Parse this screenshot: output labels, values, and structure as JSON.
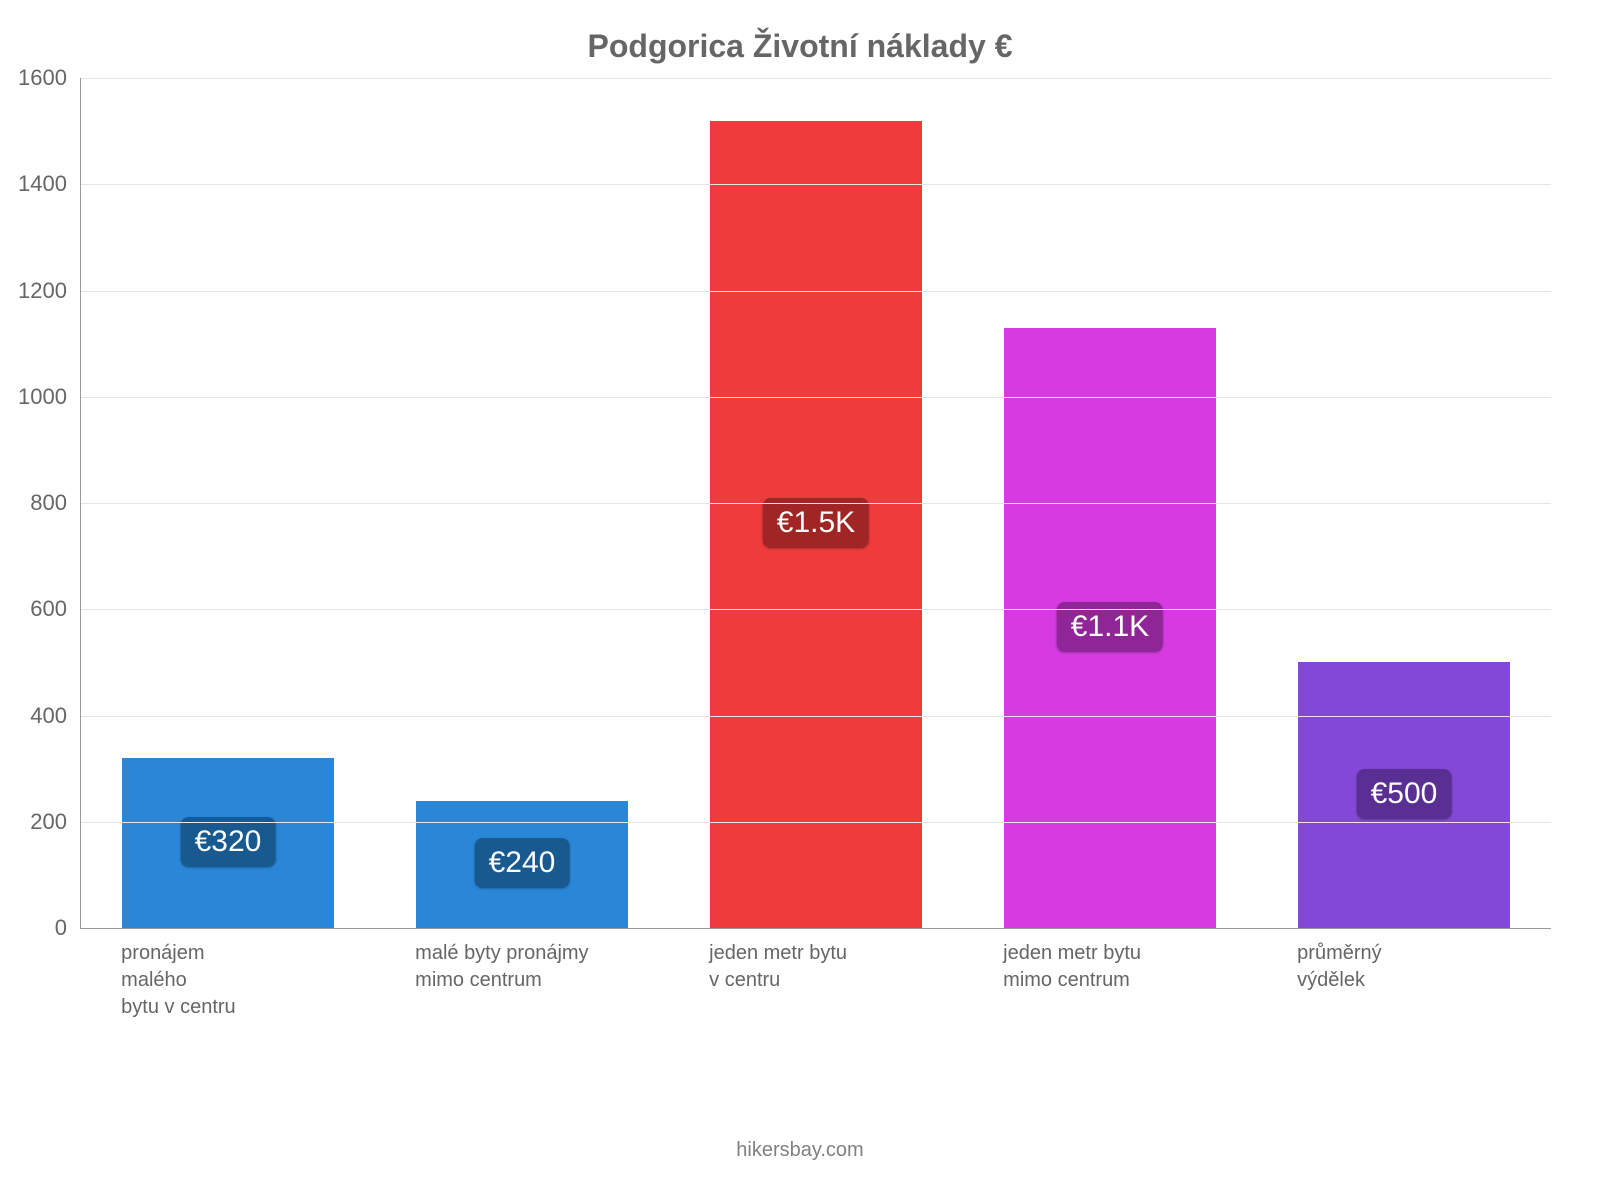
{
  "chart": {
    "type": "bar",
    "title": "Podgorica Životní náklady €",
    "title_fontsize": 32,
    "title_color": "#666666",
    "background_color": "#ffffff",
    "axis_color": "#9a9a9a",
    "grid_color": "#e6e6e6",
    "tick_color": "#666666",
    "tick_fontsize": 22,
    "xlabel_fontsize": 20,
    "ylim": [
      0,
      1600
    ],
    "ytick_step": 200,
    "yticks": [
      0,
      200,
      400,
      600,
      800,
      1000,
      1200,
      1400,
      1600
    ],
    "bar_width_ratio": 0.72,
    "categories": [
      "pronájem\nmalého\nbytu v centru",
      "malé byty pronájmy\nmimo centrum",
      "jeden metr bytu\nv centru",
      "jeden metr bytu\nmimo centrum",
      "průměrný\nvýdělek"
    ],
    "values": [
      320,
      240,
      1520,
      1130,
      500
    ],
    "value_labels": [
      "€320",
      "€240",
      "€1.5K",
      "€1.1K",
      "€500"
    ],
    "bar_colors": [
      "#2a87d8",
      "#2a87d8",
      "#ef3b3b",
      "#d53be0",
      "#8448d8"
    ],
    "label_bg_colors": [
      "#185a8f",
      "#185a8f",
      "#a02525",
      "#8f2597",
      "#5a2f93"
    ],
    "label_fontsize": 30,
    "label_text_color": "#ffffff",
    "footer": "hikersbay.com",
    "footer_color": "#808080",
    "footer_fontsize": 20
  }
}
